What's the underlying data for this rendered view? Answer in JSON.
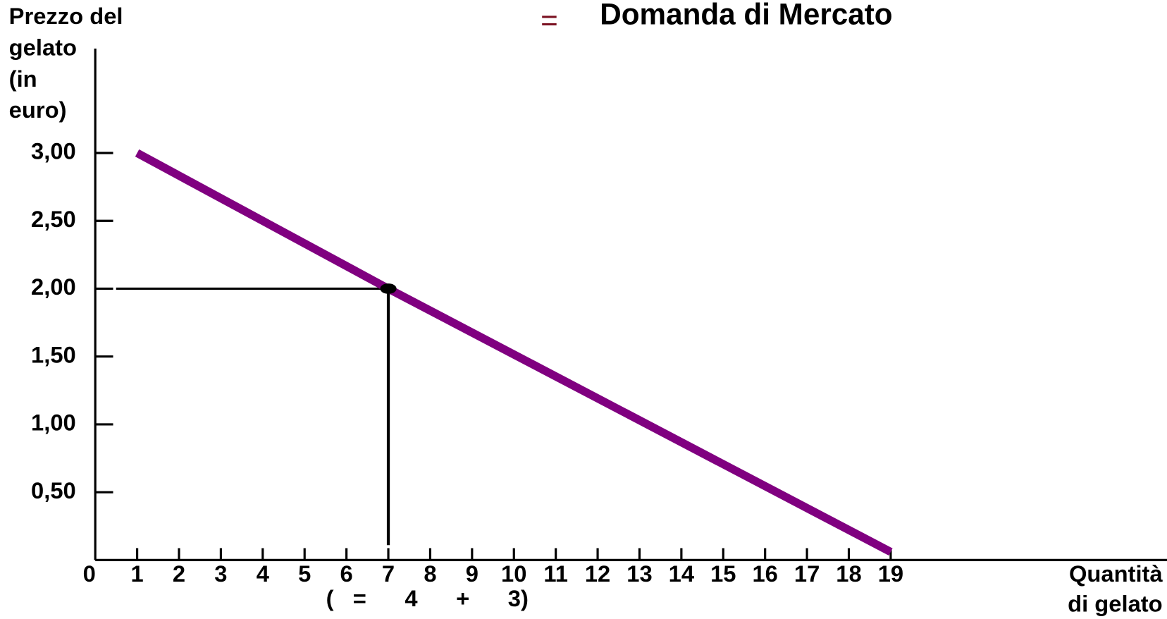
{
  "chart_data": {
    "type": "line",
    "title_symbol": "=",
    "title": "Domanda di Mercato",
    "ylabel": [
      "Prezzo del",
      "gelato",
      "(in",
      "euro)"
    ],
    "xlabel": [
      "Quantità",
      "di gelato"
    ],
    "annotation": "(   =      4      +      3)",
    "x": [
      1,
      7,
      19
    ],
    "series": [
      {
        "color": "#800080",
        "values": [
          3,
          2,
          0.06
        ]
      }
    ],
    "highlight_index": 1,
    "xlim": [
      0,
      25.6
    ],
    "ylim": [
      0,
      3.77
    ],
    "xticks": [
      0,
      1,
      2,
      3,
      4,
      5,
      6,
      7,
      8,
      9,
      10,
      11,
      12,
      13,
      14,
      15,
      16,
      17,
      18,
      19
    ],
    "yticks": [
      {
        "value": 0.5,
        "label": "0,50"
      },
      {
        "value": 1,
        "label": "1,00"
      },
      {
        "value": 1.5,
        "label": "1,50"
      },
      {
        "value": 2,
        "label": "2,00"
      },
      {
        "value": 2.5,
        "label": "2,50"
      },
      {
        "value": 3,
        "label": "3,00"
      }
    ]
  }
}
